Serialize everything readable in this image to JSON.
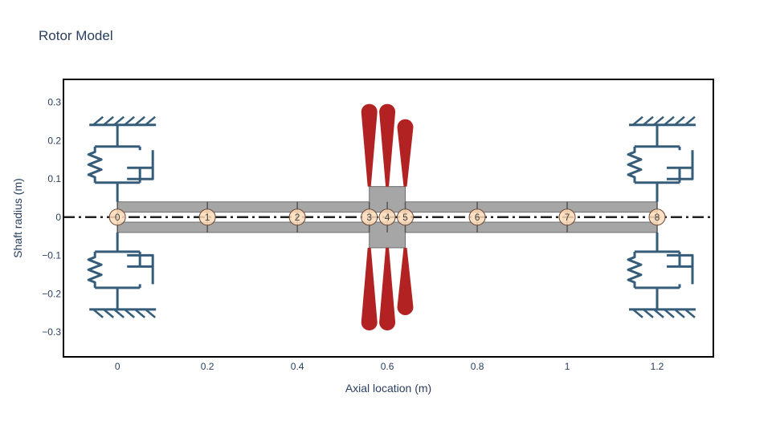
{
  "chart": {
    "title": "Rotor Model",
    "xlabel": "Axial location (m)",
    "ylabel": "Shaft radius (m)"
  },
  "chart_data": {
    "type": "rotor_diagram",
    "title": "Rotor Model",
    "xlabel": "Axial location (m)",
    "ylabel": "Shaft radius (m)",
    "xlim": [
      -0.12,
      1.325
    ],
    "ylim": [
      -0.365,
      0.36
    ],
    "xticks": [
      0,
      0.2,
      0.4,
      0.6,
      0.8,
      1,
      1.2
    ],
    "xtick_labels": [
      "0",
      "0.2",
      "0.4",
      "0.6",
      "0.8",
      "1",
      "1.2"
    ],
    "yticks": [
      -0.3,
      -0.2,
      -0.1,
      0,
      0.1,
      0.2,
      0.3
    ],
    "ytick_labels": [
      "−0.3",
      "−0.2",
      "−0.1",
      "0",
      "0.1",
      "0.2",
      "0.3"
    ],
    "centerline_y": 0,
    "nodes": [
      {
        "label": "0",
        "x": 0
      },
      {
        "label": "1",
        "x": 0.2
      },
      {
        "label": "2",
        "x": 0.4
      },
      {
        "label": "3",
        "x": 0.56
      },
      {
        "label": "4",
        "x": 0.6
      },
      {
        "label": "5",
        "x": 0.64
      },
      {
        "label": "6",
        "x": 0.8
      },
      {
        "label": "7",
        "x": 1.0
      },
      {
        "label": "8",
        "x": 1.2
      }
    ],
    "shaft_elements": [
      {
        "x0": 0,
        "x1": 0.56,
        "r_in": 0.013,
        "r_out": 0.04
      },
      {
        "x0": 0.56,
        "x1": 0.64,
        "r_in": 0.013,
        "r_out": 0.08
      },
      {
        "x0": 0.64,
        "x1": 1.2,
        "r_in": 0.013,
        "r_out": 0.04
      }
    ],
    "disks": [
      {
        "x": 0.56,
        "y_tip_top": 0.275,
        "y_tip_bottom": -0.275
      },
      {
        "x": 0.6,
        "y_tip_top": 0.275,
        "y_tip_bottom": -0.275
      },
      {
        "x": 0.64,
        "y_tip_top": 0.235,
        "y_tip_bottom": -0.235
      }
    ],
    "bearings": [
      {
        "x": 0,
        "node": "0"
      },
      {
        "x": 1.2,
        "node": "8"
      }
    ],
    "colors": {
      "shaft": "#a6a6a6",
      "disk": "#b22222",
      "bearing": "#355d7a",
      "node_fill": "#ffdab9",
      "centerline": "#222222",
      "text": "#2a3f5f"
    }
  }
}
